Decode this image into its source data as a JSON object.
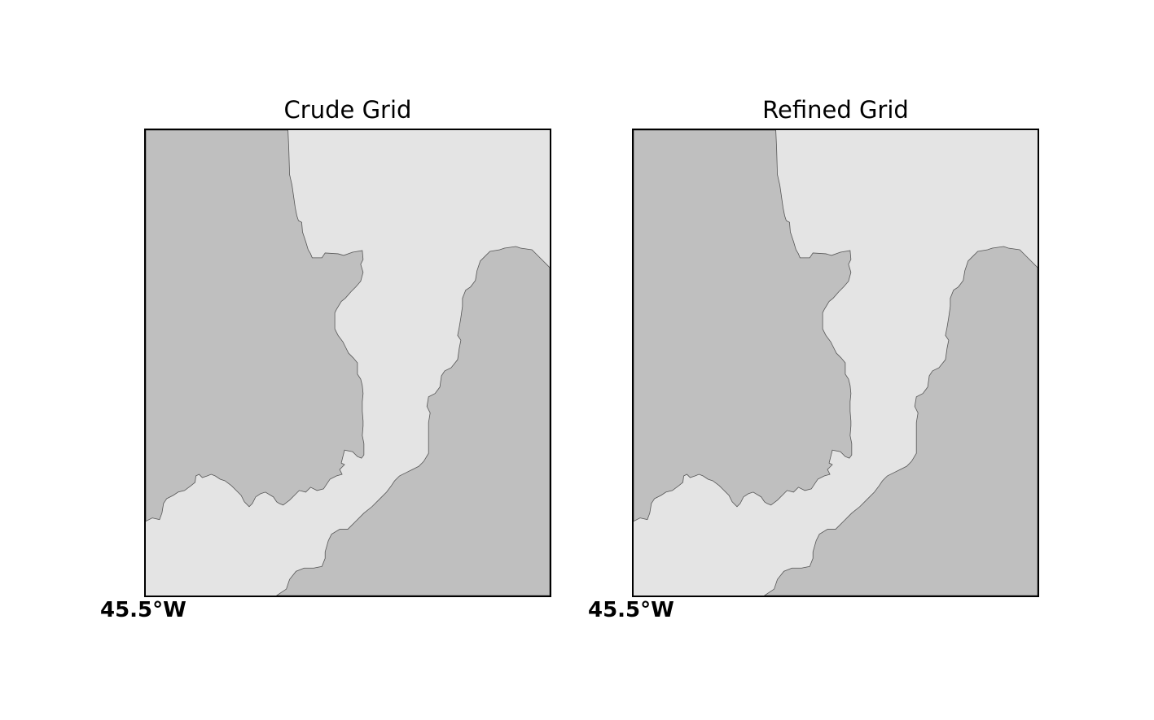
{
  "panels": [
    {
      "title": "Crude Grid",
      "lon_label": "45.5°W"
    },
    {
      "title": "Refined Grid",
      "lon_label": "45.5°W"
    }
  ],
  "colors": {
    "water": "#e4e4e4",
    "land": "#bfbfbf",
    "coastline": "#555555",
    "frame": "#000000"
  }
}
